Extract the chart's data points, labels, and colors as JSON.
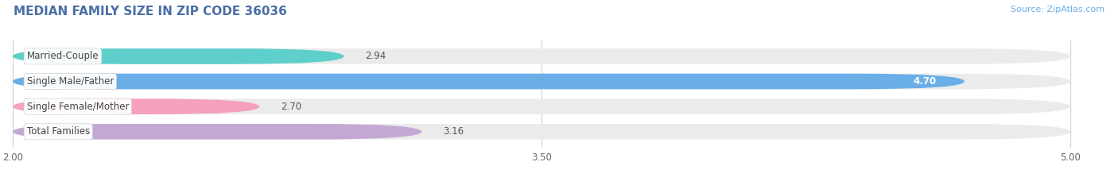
{
  "title": "MEDIAN FAMILY SIZE IN ZIP CODE 36036",
  "source": "Source: ZipAtlas.com",
  "categories": [
    "Married-Couple",
    "Single Male/Father",
    "Single Female/Mother",
    "Total Families"
  ],
  "values": [
    2.94,
    4.7,
    2.7,
    3.16
  ],
  "bar_colors": [
    "#5ecfcb",
    "#6aaee8",
    "#f4a0be",
    "#c4a8d4"
  ],
  "bar_bg_color": "#ebebeb",
  "value_label_inside": [
    false,
    true,
    false,
    false
  ],
  "xmin": 2.0,
  "xmax": 5.0,
  "xticks": [
    2.0,
    3.5,
    5.0
  ],
  "xtick_labels": [
    "2.00",
    "3.50",
    "5.00"
  ],
  "bar_height": 0.62,
  "label_fontsize": 8.5,
  "value_fontsize": 8.5,
  "title_fontsize": 11,
  "source_fontsize": 8,
  "background_color": "#ffffff",
  "grid_color": "#d0d0d0",
  "title_color": "#4a6fa5",
  "source_color": "#6aaee8"
}
